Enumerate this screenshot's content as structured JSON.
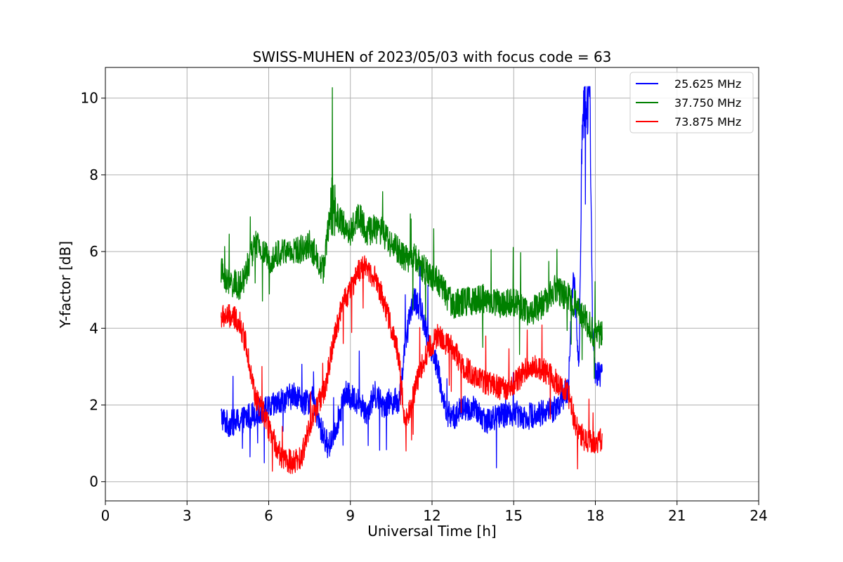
{
  "chart_data": {
    "type": "line",
    "title": "SWISS-MUHEN of 2023/05/03 with focus code = 63",
    "xlabel": "Universal Time [h]",
    "ylabel": "Y-factor [dB]",
    "xlim": [
      0,
      24
    ],
    "ylim": [
      -0.5,
      10.8
    ],
    "xticks": [
      "0",
      "3",
      "6",
      "9",
      "12",
      "15",
      "18",
      "21",
      "24"
    ],
    "yticks": [
      "0",
      "2",
      "4",
      "6",
      "8",
      "10"
    ],
    "grid": true,
    "legend_position": "top-right",
    "series": [
      {
        "name": "25.625 MHz",
        "color": "#0000ff",
        "noise": 0.35,
        "x": [
          4.25,
          4.5,
          5.0,
          5.5,
          6.0,
          6.5,
          7.0,
          7.3,
          7.6,
          7.9,
          8.2,
          8.5,
          8.8,
          9.0,
          9.3,
          9.6,
          9.9,
          10.2,
          10.5,
          10.8,
          11.0,
          11.3,
          11.6,
          11.9,
          12.2,
          12.5,
          12.8,
          13.1,
          13.5,
          14.0,
          14.5,
          15.0,
          15.5,
          16.0,
          16.5,
          17.0,
          17.2,
          17.4,
          17.5,
          17.6,
          17.7,
          17.8,
          17.9,
          18.0,
          18.25
        ],
        "y": [
          1.7,
          1.5,
          1.6,
          1.8,
          1.9,
          2.1,
          2.3,
          2.0,
          2.2,
          1.4,
          0.9,
          1.5,
          2.3,
          2.2,
          2.1,
          1.8,
          2.3,
          2.0,
          2.1,
          2.1,
          3.5,
          4.8,
          4.5,
          3.6,
          3.0,
          1.8,
          1.7,
          1.9,
          1.9,
          1.6,
          1.7,
          1.8,
          1.7,
          1.8,
          1.9,
          2.4,
          5.5,
          3.0,
          8.5,
          10.0,
          9.8,
          10.0,
          4.0,
          2.8,
          2.8
        ]
      },
      {
        "name": "37.750 MHz",
        "color": "#008000",
        "noise": 0.38,
        "x": [
          4.25,
          4.5,
          5.0,
          5.5,
          6.0,
          6.5,
          7.0,
          7.5,
          8.0,
          8.3,
          8.6,
          9.0,
          9.3,
          9.6,
          9.9,
          10.2,
          10.5,
          10.8,
          11.0,
          11.3,
          11.6,
          11.9,
          12.2,
          12.5,
          12.8,
          13.1,
          13.5,
          14.0,
          14.5,
          15.0,
          15.5,
          16.0,
          16.5,
          17.0,
          17.3,
          17.6,
          17.9,
          18.25
        ],
        "y": [
          5.5,
          5.2,
          5.1,
          6.2,
          5.8,
          6.0,
          6.0,
          6.2,
          5.5,
          7.2,
          6.8,
          6.5,
          7.0,
          6.5,
          6.6,
          6.5,
          6.2,
          6.0,
          5.8,
          5.9,
          5.6,
          5.4,
          5.3,
          4.9,
          4.6,
          4.7,
          4.7,
          4.8,
          4.6,
          4.7,
          4.4,
          4.6,
          5.0,
          4.8,
          4.6,
          4.3,
          3.9,
          3.8
        ]
      },
      {
        "name": "73.875 MHz",
        "color": "#ff0000",
        "noise": 0.32,
        "x": [
          4.25,
          4.6,
          4.9,
          5.2,
          5.5,
          5.8,
          6.1,
          6.5,
          6.9,
          7.2,
          7.5,
          7.8,
          8.1,
          8.4,
          8.7,
          9.0,
          9.3,
          9.6,
          9.9,
          10.2,
          10.5,
          10.8,
          11.0,
          11.3,
          11.6,
          11.9,
          12.2,
          12.5,
          12.8,
          13.1,
          13.5,
          13.9,
          14.3,
          14.7,
          15.1,
          15.5,
          15.9,
          16.3,
          16.7,
          17.0,
          17.3,
          17.6,
          17.9,
          18.25
        ],
        "y": [
          4.3,
          4.3,
          4.2,
          3.5,
          2.2,
          1.8,
          1.2,
          0.6,
          0.5,
          0.6,
          1.5,
          2.0,
          2.5,
          3.8,
          4.6,
          5.0,
          5.5,
          5.6,
          5.3,
          4.8,
          4.0,
          3.2,
          1.5,
          2.2,
          3.0,
          3.5,
          3.8,
          3.6,
          3.5,
          3.0,
          2.8,
          2.6,
          2.5,
          2.4,
          2.6,
          3.0,
          3.0,
          2.8,
          2.5,
          2.3,
          1.4,
          1.1,
          1.0,
          1.1
        ]
      }
    ]
  }
}
